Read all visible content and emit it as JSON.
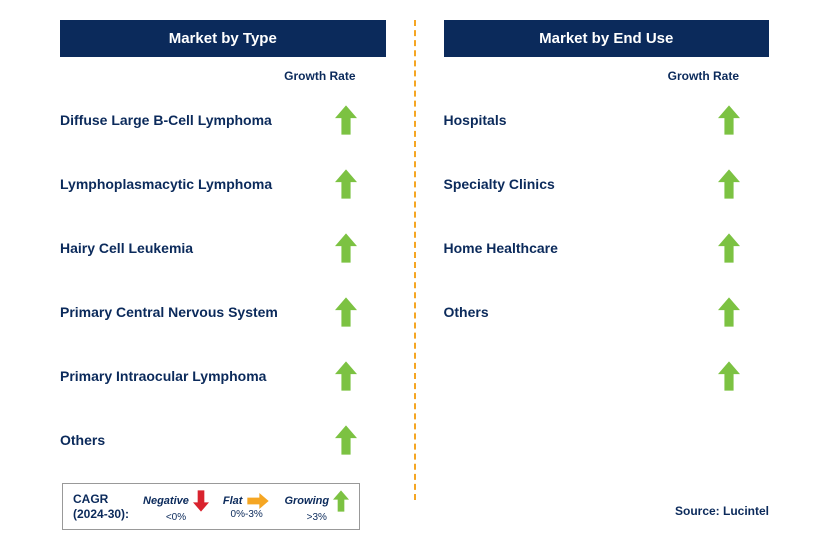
{
  "colors": {
    "header_bg": "#0b2a5b",
    "header_text": "#ffffff",
    "text_dark": "#0b2a5b",
    "divider": "#f5a623",
    "arrow_up": "#7cc242",
    "arrow_down": "#d9232e",
    "arrow_flat": "#f5a623"
  },
  "typography": {
    "header_fontsize": 15,
    "label_fontsize": 14,
    "col_header_fontsize": 12
  },
  "left": {
    "title": "Market by Type",
    "growth_header": "Growth Rate",
    "rows": [
      {
        "label": "Diffuse Large B-Cell Lymphoma",
        "growth": "growing"
      },
      {
        "label": "Lymphoplasmacytic Lymphoma",
        "growth": "growing"
      },
      {
        "label": "Hairy Cell Leukemia",
        "growth": "growing"
      },
      {
        "label": "Primary Central Nervous System",
        "growth": "growing"
      },
      {
        "label": "Primary Intraocular Lymphoma",
        "growth": "growing"
      },
      {
        "label": "Others",
        "growth": "growing"
      }
    ]
  },
  "right": {
    "title": "Market by End Use",
    "growth_header": "Growth Rate",
    "rows": [
      {
        "label": "Hospitals",
        "growth": "growing"
      },
      {
        "label": "Specialty Clinics",
        "growth": "growing"
      },
      {
        "label": "Home Healthcare",
        "growth": "growing"
      },
      {
        "label": "Others",
        "growth": "growing"
      },
      {
        "label": "",
        "growth": "growing"
      }
    ]
  },
  "legend": {
    "title_line1": "CAGR",
    "title_line2": "(2024-30):",
    "negative": {
      "label": "Negative",
      "sub": "<0%"
    },
    "flat": {
      "label": "Flat",
      "sub": "0%-3%"
    },
    "growing": {
      "label": "Growing",
      "sub": ">3%"
    }
  },
  "source": "Source: Lucintel"
}
